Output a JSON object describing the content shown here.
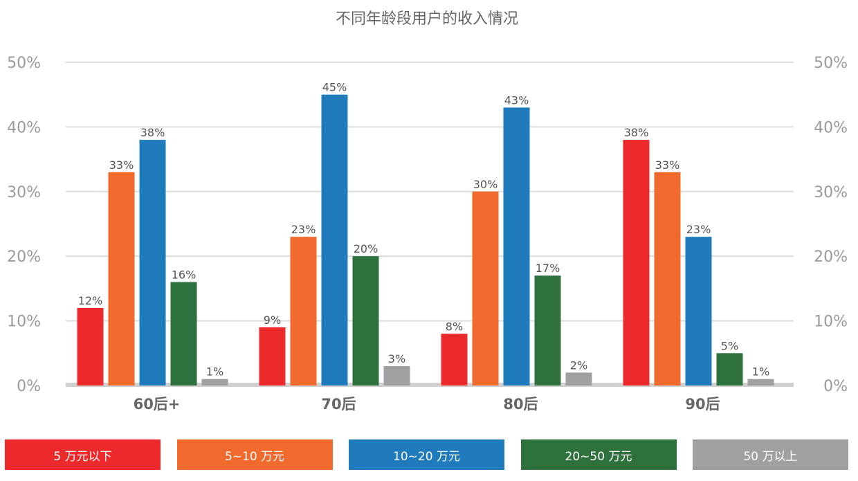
{
  "chart_data": {
    "type": "bar",
    "title": "不同年龄段用户的收入情况",
    "categories": [
      "60后+",
      "70后",
      "80后",
      "90后"
    ],
    "series": [
      {
        "name": "5 万元以下",
        "color": "#ec2a2b",
        "values": [
          12,
          9,
          8,
          38
        ]
      },
      {
        "name": "5~10 万元",
        "color": "#f06a2e",
        "values": [
          33,
          23,
          30,
          33
        ]
      },
      {
        "name": "10~20 万元",
        "color": "#1f7bbb",
        "values": [
          38,
          45,
          43,
          23
        ]
      },
      {
        "name": "20~50 万元",
        "color": "#2f713d",
        "values": [
          16,
          20,
          17,
          5
        ]
      },
      {
        "name": "50 万以上",
        "color": "#a0a0a2",
        "values": [
          1,
          3,
          2,
          1
        ]
      }
    ],
    "data_labels": [
      [
        "12%",
        "33%",
        "38%",
        "16%",
        "1%"
      ],
      [
        "9%",
        "23%",
        "45%",
        "20%",
        "3%"
      ],
      [
        "8%",
        "30%",
        "43%",
        "17%",
        "2%"
      ],
      [
        "38%",
        "33%",
        "23%",
        "5%",
        "1%"
      ]
    ],
    "y_ticks": [
      0,
      10,
      20,
      30,
      40,
      50
    ],
    "y_tick_labels": [
      "0%",
      "10%",
      "20%",
      "30%",
      "40%",
      "50%"
    ],
    "ylim": [
      0,
      50
    ],
    "xlabel": "",
    "ylabel": "",
    "grid": true,
    "legend_position": "bottom"
  }
}
